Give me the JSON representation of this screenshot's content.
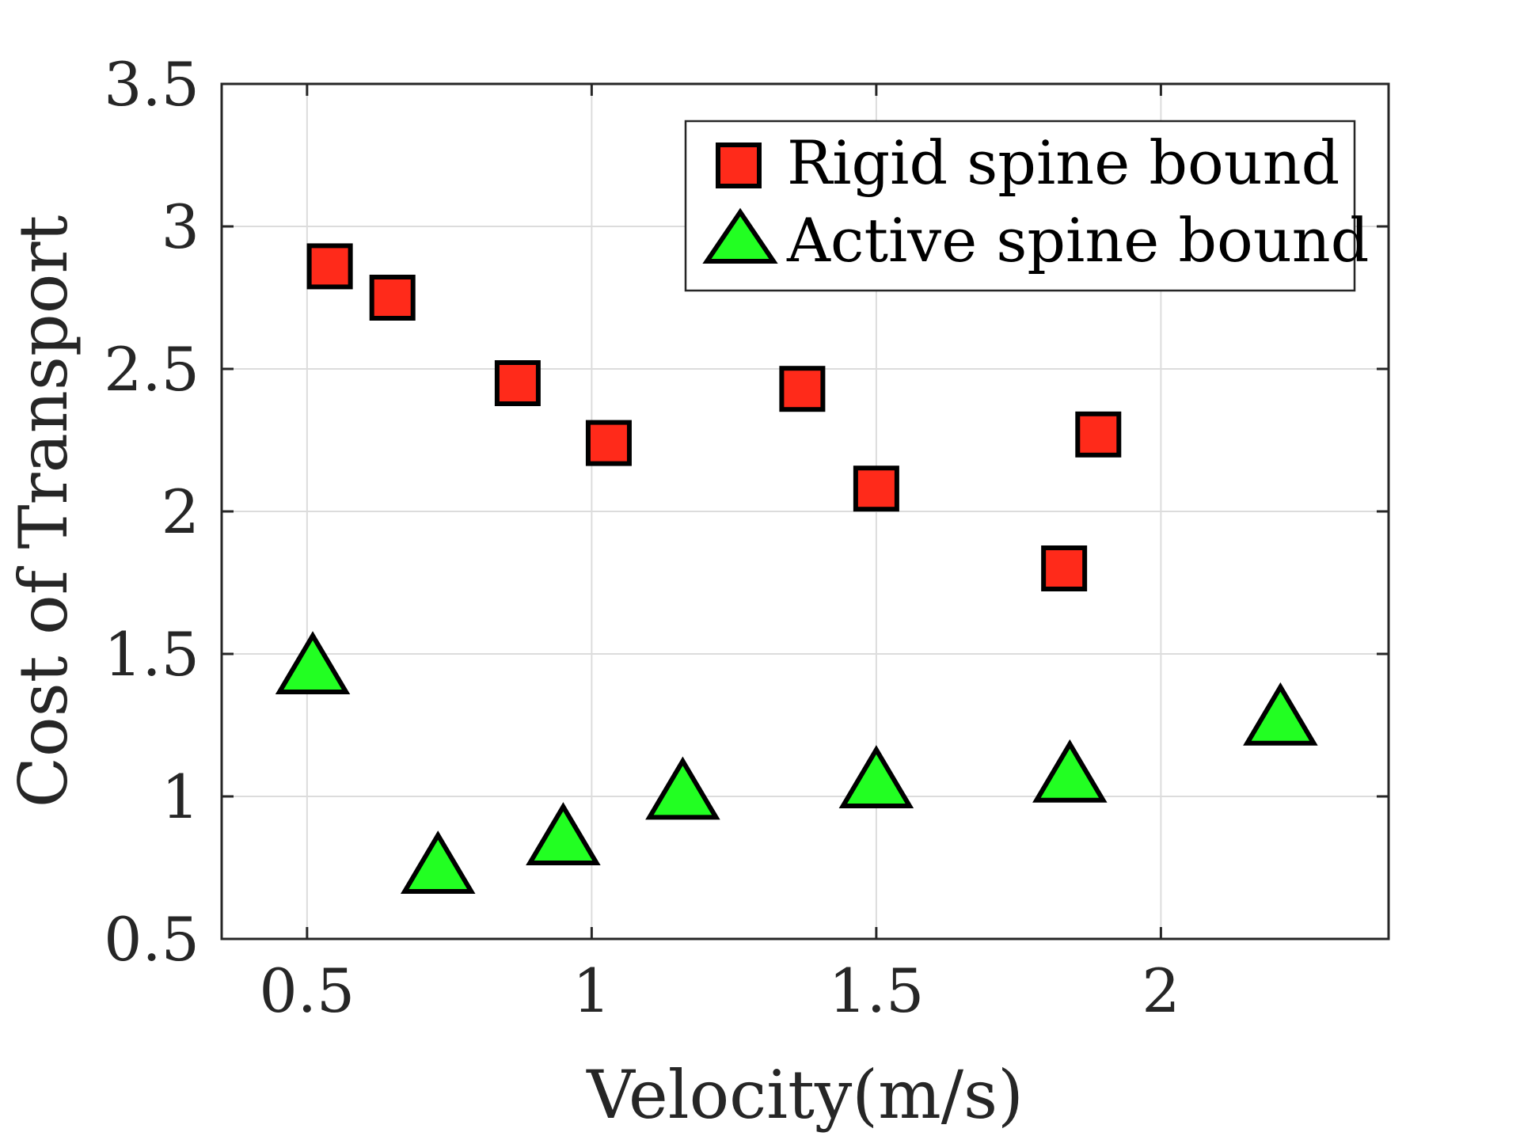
{
  "chart_data": {
    "type": "scatter",
    "title": "",
    "xlabel": "Velocity(m/s)",
    "ylabel": "Cost of Transport",
    "xlim": [
      0.35,
      2.4
    ],
    "ylim": [
      0.5,
      3.5
    ],
    "xticks": [
      0.5,
      1,
      1.5,
      2
    ],
    "xtick_labels": [
      "0.5",
      "1",
      "1.5",
      "2"
    ],
    "yticks": [
      0.5,
      1,
      1.5,
      2,
      2.5,
      3,
      3.5
    ],
    "ytick_labels": [
      "0.5",
      "1",
      "1.5",
      "2",
      "2.5",
      "3",
      "3.5"
    ],
    "grid": true,
    "legend_position": "top-right",
    "series": [
      {
        "name": "Rigid spine bound",
        "marker": "square",
        "color": "#ff2a1a",
        "points": [
          {
            "x": 0.54,
            "y": 2.86
          },
          {
            "x": 0.65,
            "y": 2.75
          },
          {
            "x": 0.87,
            "y": 2.45
          },
          {
            "x": 1.03,
            "y": 2.24
          },
          {
            "x": 1.37,
            "y": 2.43
          },
          {
            "x": 1.5,
            "y": 2.08
          },
          {
            "x": 1.83,
            "y": 1.8
          },
          {
            "x": 1.89,
            "y": 2.27
          }
        ]
      },
      {
        "name": "Active spine bound",
        "marker": "triangle",
        "color": "#22ff22",
        "points": [
          {
            "x": 0.51,
            "y": 1.45
          },
          {
            "x": 0.73,
            "y": 0.75
          },
          {
            "x": 0.95,
            "y": 0.85
          },
          {
            "x": 1.16,
            "y": 1.01
          },
          {
            "x": 1.5,
            "y": 1.05
          },
          {
            "x": 1.84,
            "y": 1.07
          },
          {
            "x": 2.21,
            "y": 1.27
          }
        ]
      }
    ]
  }
}
